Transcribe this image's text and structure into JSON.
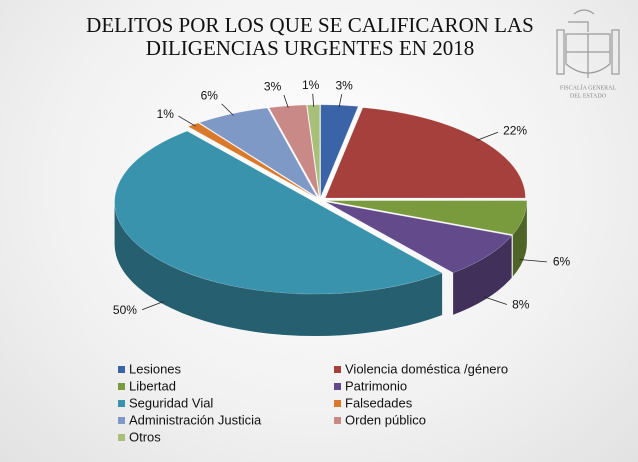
{
  "chart_data": {
    "type": "pie3d",
    "title": "DELITOS POR LOS QUE SE CALIFICARON LAS DILIGENCIAS URGENTES EN 2018",
    "categories": [
      "Lesiones",
      "Violencia doméstica /género",
      "Libertad",
      "Patrimonio",
      "Seguridad Vial",
      "Falsedades",
      "Administración Justicia",
      "Orden público",
      "Otros"
    ],
    "values": [
      3,
      22,
      6,
      8,
      50,
      1,
      6,
      3,
      1
    ],
    "value_labels": [
      "3%",
      "22%",
      "6%",
      "8%",
      "50%",
      "1%",
      "6%",
      "3%",
      "1%"
    ],
    "colors": [
      "#3b63a8",
      "#a5403d",
      "#7a9b3d",
      "#634b8b",
      "#3a93ad",
      "#d9792b",
      "#7f99c7",
      "#c98987",
      "#a7bf78"
    ],
    "legend": "bottom"
  },
  "logo": {
    "line1": "FISCALÍA GENERAL",
    "line2": "DEL ESTADO"
  }
}
